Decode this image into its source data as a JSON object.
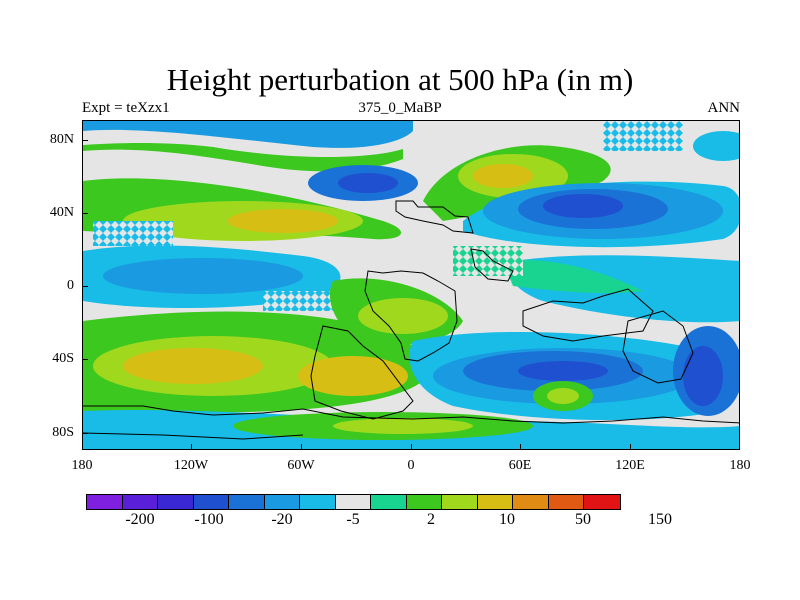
{
  "title": "Height perturbation at 500 hPa (in m)",
  "subtitle_left": "Expt = teXzx1",
  "subtitle_center": "375_0_MaBP",
  "subtitle_right": "ANN",
  "chart_data": {
    "type": "heatmap",
    "title": "Height perturbation at 500 hPa (in m)",
    "x_range": [
      -180,
      180
    ],
    "y_range": [
      -90,
      90
    ],
    "x_ticks": [
      "180",
      "120W",
      "60W",
      "0",
      "60E",
      "120E",
      "180"
    ],
    "y_ticks": [
      "80N",
      "40N",
      "0",
      "40S",
      "80S"
    ],
    "colorbar": {
      "colors": [
        "#7f1fe0",
        "#5a1fd9",
        "#3a28d4",
        "#1f50d0",
        "#1a72d6",
        "#1a9ae0",
        "#18bce6",
        "#e5e5e5",
        "#18d490",
        "#3cc81e",
        "#a0d81e",
        "#d6be14",
        "#e08c14",
        "#e05a14",
        "#e01414"
      ],
      "labels": [
        "-200",
        "-100",
        "-20",
        "-5",
        "2",
        "10",
        "50",
        "150"
      ]
    },
    "field_regions": [
      {
        "description": "positive ridge over N Atlantic / Europe",
        "level": 3
      },
      {
        "description": "negative trough over N Pacific",
        "level": -3
      },
      {
        "description": "negative trough over Asia",
        "level": -4
      },
      {
        "description": "positive band mid-latitude south Pacific",
        "level": 3
      },
      {
        "description": "negative anomaly southern Indian Ocean",
        "level": -4
      }
    ]
  }
}
